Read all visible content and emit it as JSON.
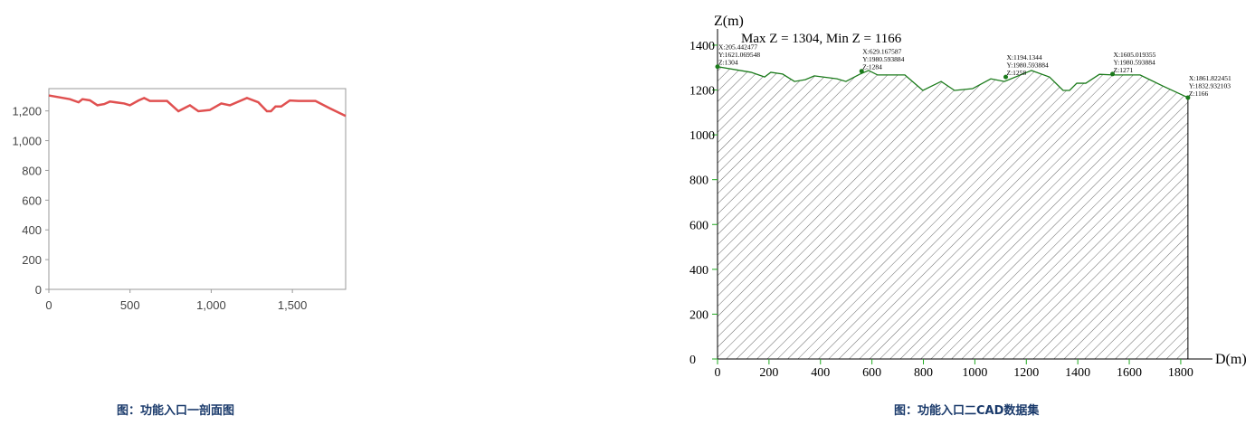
{
  "captions": {
    "left": "图：功能入口一剖面图",
    "right": "图：功能入口二CAD数据集"
  },
  "chart_data": [
    {
      "type": "line",
      "xlim": [
        0,
        1828
      ],
      "ylim": [
        0,
        1350
      ],
      "xticks": [
        0,
        500,
        1000,
        1500
      ],
      "xtick_labels": [
        "0",
        "500",
        "1,000",
        "1,500"
      ],
      "yticks": [
        0,
        200,
        400,
        600,
        800,
        1000,
        1200
      ],
      "ytick_labels": [
        "0",
        "200",
        "400",
        "600",
        "800",
        "1,000",
        "1,200"
      ],
      "line_color": "#e05050",
      "grid": false
    },
    {
      "type": "area",
      "title": "Max Z = 1304, Min Z = 1166",
      "xlabel": "D(m)",
      "ylabel": "Z(m)",
      "xlim": [
        0,
        1828
      ],
      "ylim": [
        0,
        1400
      ],
      "xticks": [
        0,
        200,
        400,
        600,
        800,
        1000,
        1200,
        1400,
        1600,
        1800
      ],
      "yticks": [
        0,
        200,
        400,
        600,
        800,
        1000,
        1200,
        1400
      ],
      "line_color": "#1a7a1a",
      "fill": "hatched",
      "annotations": [
        {
          "d": 0,
          "z": 1304,
          "lines": [
            "X:205.442477",
            "Y:1621.069548",
            "Z:1304"
          ]
        },
        {
          "d": 560,
          "z": 1284,
          "lines": [
            "X:629.167587",
            "Y:1980.593884",
            "Z:1284"
          ]
        },
        {
          "d": 1120,
          "z": 1258,
          "lines": [
            "X:1194.1344",
            "Y:1980.593884",
            "Z:1258"
          ]
        },
        {
          "d": 1535,
          "z": 1271,
          "lines": [
            "X:1605.019355",
            "Y:1980.593884",
            "Z:1271"
          ]
        },
        {
          "d": 1828,
          "z": 1166,
          "lines": [
            "X:1861.822451",
            "Y:1832.932103",
            "Z:1166"
          ]
        }
      ]
    }
  ],
  "profile": {
    "d": [
      0,
      130,
      183,
      207,
      253,
      299,
      341,
      376,
      464,
      499,
      552,
      587,
      622,
      728,
      798,
      833,
      869,
      921,
      991,
      1062,
      1115,
      1220,
      1290,
      1343,
      1368,
      1396,
      1431,
      1484,
      1537,
      1642,
      1730,
      1828
    ],
    "z": [
      1304,
      1279,
      1258,
      1279,
      1271,
      1238,
      1246,
      1263,
      1250,
      1238,
      1270,
      1287,
      1267,
      1267,
      1198,
      1218,
      1238,
      1198,
      1206,
      1250,
      1238,
      1287,
      1258,
      1198,
      1198,
      1230,
      1230,
      1270,
      1267,
      1267,
      1218,
      1166
    ]
  }
}
